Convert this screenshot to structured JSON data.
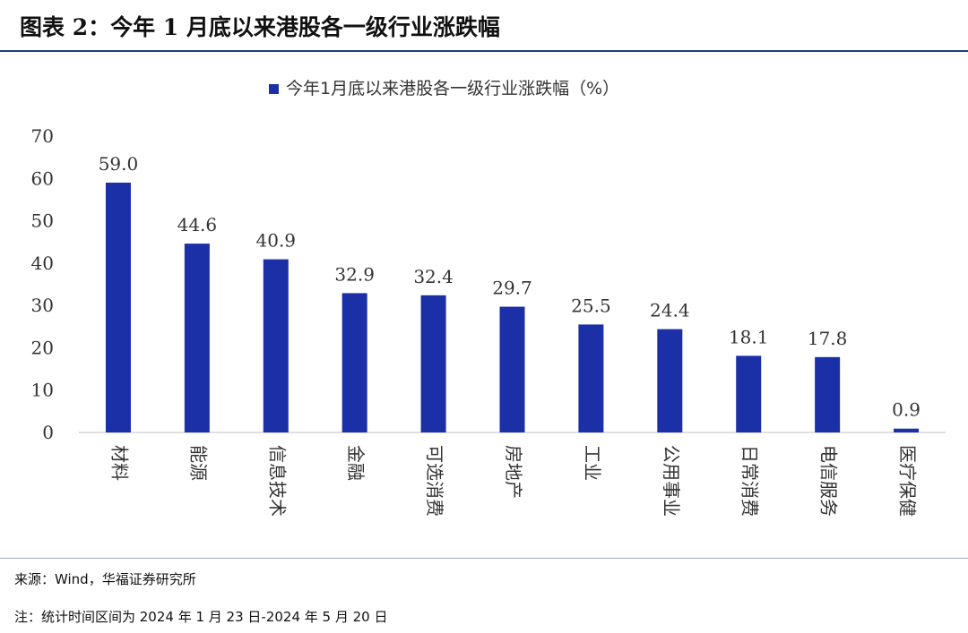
{
  "figure": {
    "title": "图表 2：今年 1 月底以来港股各一级行业涨跌幅",
    "source": "来源：Wind，华福证券研究所",
    "note": "注：统计时间区间为 2024 年 1 月 23 日-2024 年 5 月 20 日"
  },
  "colors": {
    "bar": "#1b2fa6",
    "rule": "#1f3c88",
    "axis_text": "#333333"
  },
  "chart_data": {
    "type": "bar",
    "legend": "今年1月底以来港股各一级行业涨跌幅（%）",
    "legend_position": "top-center",
    "categories": [
      "材料",
      "能源",
      "信息技术",
      "金融",
      "可选消费",
      "房地产",
      "工业",
      "公用事业",
      "日常消费",
      "电信服务",
      "医疗保健"
    ],
    "series": [
      {
        "name": "今年1月底以来港股各一级行业涨跌幅（%）",
        "values": [
          59.0,
          44.6,
          40.9,
          32.9,
          32.4,
          29.7,
          25.5,
          24.4,
          18.1,
          17.8,
          0.9
        ],
        "labels": [
          "59.0",
          "44.6",
          "40.9",
          "32.9",
          "32.4",
          "29.7",
          "25.5",
          "24.4",
          "18.1",
          "17.8",
          "0.9"
        ]
      }
    ],
    "ylim": [
      0,
      70
    ],
    "yticks": [
      0,
      10,
      20,
      30,
      40,
      50,
      60,
      70
    ],
    "grid": false,
    "xlabel": "",
    "ylabel": ""
  }
}
